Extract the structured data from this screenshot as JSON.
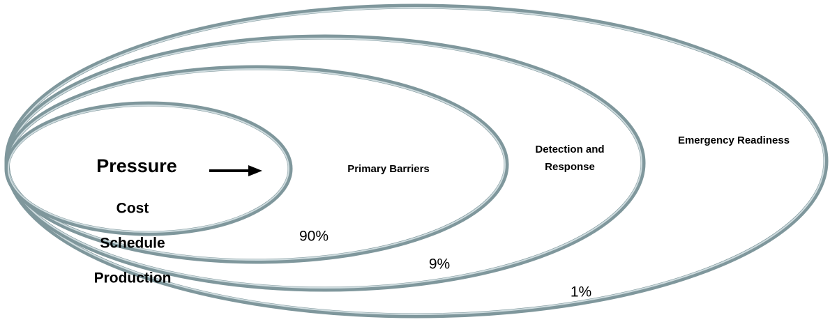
{
  "center": {
    "title": "Pressure",
    "pressures": [
      "Cost",
      "Schedule",
      "Production"
    ]
  },
  "layers": [
    {
      "label": [
        "Primary Barriers"
      ],
      "share": "90%"
    },
    {
      "label": [
        "Detection and",
        "Response"
      ],
      "share": "9%"
    },
    {
      "label": [
        "Emergency Readiness"
      ],
      "share": "1%"
    }
  ]
}
